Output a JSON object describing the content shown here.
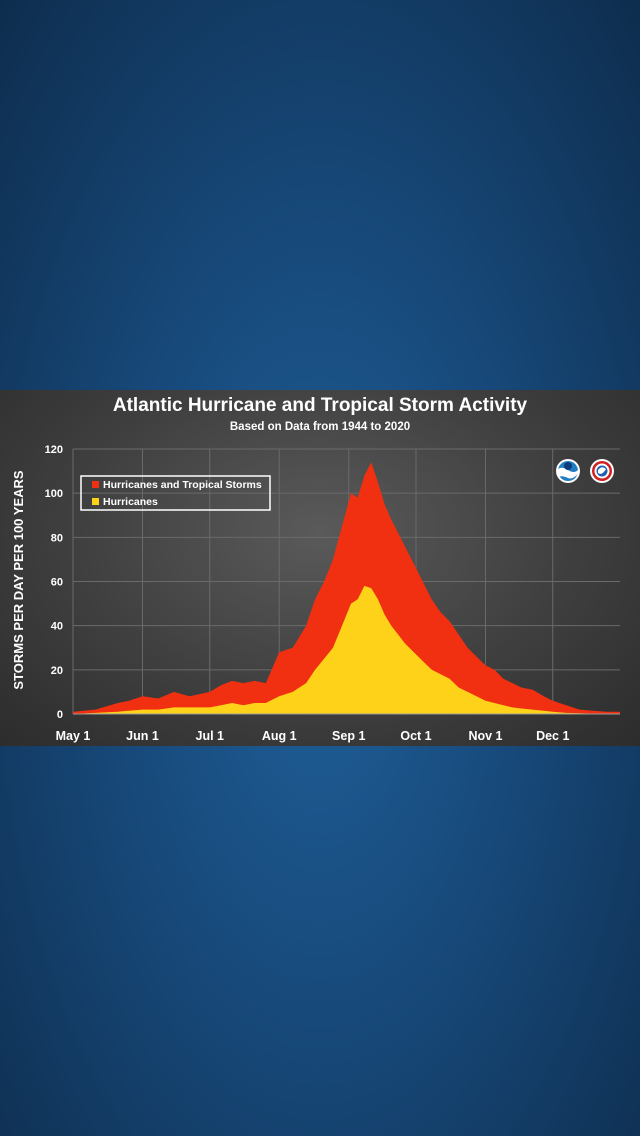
{
  "chart_data": {
    "type": "area",
    "title": "Atlantic Hurricane and Tropical Storm Activity",
    "subtitle": "Based on Data from 1944 to 2020",
    "ylabel": "STORMS PER DAY PER 100 YEARS",
    "xlabel": "",
    "x_tick_labels": [
      "May 1",
      "Jun 1",
      "Jul 1",
      "Aug 1",
      "Sep 1",
      "Oct 1",
      "Nov 1",
      "Dec 1"
    ],
    "x_tick_days": [
      0,
      31,
      61,
      92,
      123,
      153,
      184,
      214
    ],
    "y_ticks": [
      0,
      20,
      40,
      60,
      80,
      100,
      120
    ],
    "ylim": [
      0,
      120
    ],
    "x_domain_days": [
      0,
      244
    ],
    "grid": true,
    "legend_position": "top-left",
    "days": [
      0,
      10,
      20,
      25,
      31,
      38,
      45,
      52,
      61,
      66,
      71,
      76,
      81,
      86,
      92,
      98,
      104,
      108,
      112,
      116,
      120,
      124,
      127,
      130,
      133,
      136,
      139,
      142,
      145,
      148,
      152,
      156,
      160,
      164,
      168,
      172,
      176,
      180,
      184,
      188,
      192,
      196,
      200,
      205,
      210,
      214,
      220,
      226,
      232,
      238,
      244
    ],
    "series": [
      {
        "name": "Hurricanes and Tropical Storms",
        "color": "#f03010",
        "values": [
          1,
          2,
          5,
          6,
          8,
          7,
          10,
          8,
          10,
          13,
          15,
          14,
          15,
          14,
          28,
          30,
          40,
          52,
          60,
          70,
          85,
          100,
          98,
          108,
          114,
          105,
          95,
          88,
          82,
          76,
          68,
          60,
          52,
          46,
          42,
          36,
          30,
          26,
          22,
          20,
          16,
          14,
          12,
          11,
          8,
          6,
          4,
          2,
          1.5,
          1,
          1
        ]
      },
      {
        "name": "Hurricanes",
        "color": "#ffd21a",
        "values": [
          0,
          0.5,
          1,
          1.5,
          2,
          2,
          3,
          3,
          3,
          4,
          5,
          4,
          5,
          5,
          8,
          10,
          14,
          20,
          25,
          30,
          40,
          50,
          52,
          58,
          57,
          52,
          45,
          40,
          36,
          32,
          28,
          24,
          20,
          18,
          16,
          12,
          10,
          8,
          6,
          5,
          4,
          3,
          2.5,
          2,
          1.5,
          1,
          0.5,
          0.3,
          0.2,
          0.1,
          0.1
        ]
      }
    ],
    "logos": [
      "noaa-logo",
      "nws-logo"
    ]
  }
}
